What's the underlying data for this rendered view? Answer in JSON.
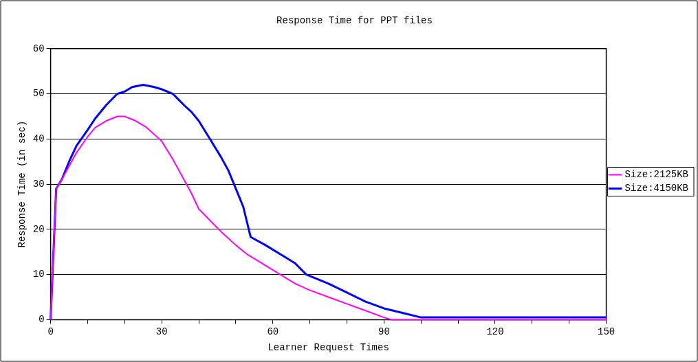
{
  "chart_data": {
    "type": "line",
    "title": "Response Time for PPT files",
    "xlabel": "Learner Request Times",
    "ylabel": "Response Time (in sec)",
    "xlim": [
      0,
      150
    ],
    "xticks": [
      0,
      {
        "value": 10,
        "label": null
      },
      {
        "value": 20,
        "label": null
      },
      30,
      {
        "value": 40,
        "label": null
      },
      {
        "value": 50,
        "label": null
      },
      60,
      {
        "value": 70,
        "label": null
      },
      {
        "value": 80,
        "label": null
      },
      90,
      {
        "value": 100,
        "label": null
      },
      {
        "value": 110,
        "label": null
      },
      120,
      {
        "value": 130,
        "label": null
      },
      {
        "value": 140,
        "label": null
      },
      150
    ],
    "ylim": [
      0,
      60
    ],
    "yticks": [
      0,
      10,
      20,
      30,
      40,
      50,
      60
    ],
    "grid": "y",
    "legend": "right",
    "marker": "none",
    "line_style": "solid",
    "series": [
      {
        "name": "Size:2125KB",
        "color": "#ff00ff",
        "x": [
          0,
          1.5,
          3,
          5,
          7,
          10,
          12,
          15,
          18,
          20,
          23,
          26,
          30,
          33,
          36,
          38,
          40,
          43,
          46,
          50,
          53,
          56,
          60,
          62,
          66,
          70,
          75,
          80,
          85,
          90,
          92,
          150
        ],
        "values": [
          0,
          29,
          31,
          34,
          37,
          40.5,
          42.5,
          44,
          45,
          45,
          44,
          42.5,
          39.5,
          35.5,
          31,
          28,
          24.5,
          22,
          19.5,
          16.5,
          14.5,
          13,
          11,
          10,
          8,
          6.5,
          5,
          3.5,
          2,
          0.5,
          0,
          0
        ]
      },
      {
        "name": "Size:4150KB",
        "color": "#0000ff",
        "x": [
          0,
          1.5,
          3,
          5,
          7,
          10,
          12,
          15,
          18,
          20,
          22,
          25,
          28,
          30,
          33,
          36,
          38,
          40,
          43,
          46,
          48,
          50,
          52,
          54,
          58,
          62,
          66,
          69,
          75,
          80,
          85,
          90,
          95,
          100,
          150
        ],
        "values": [
          0,
          29,
          31,
          35,
          38.5,
          42,
          44.5,
          47.5,
          50,
          50.5,
          51.5,
          52,
          51.5,
          51,
          50,
          47.5,
          46,
          44,
          40,
          36,
          33,
          29,
          25,
          18.3,
          16.5,
          14.5,
          12.5,
          10,
          8,
          6,
          4,
          2.5,
          1.5,
          0.5,
          0.5
        ]
      }
    ]
  }
}
